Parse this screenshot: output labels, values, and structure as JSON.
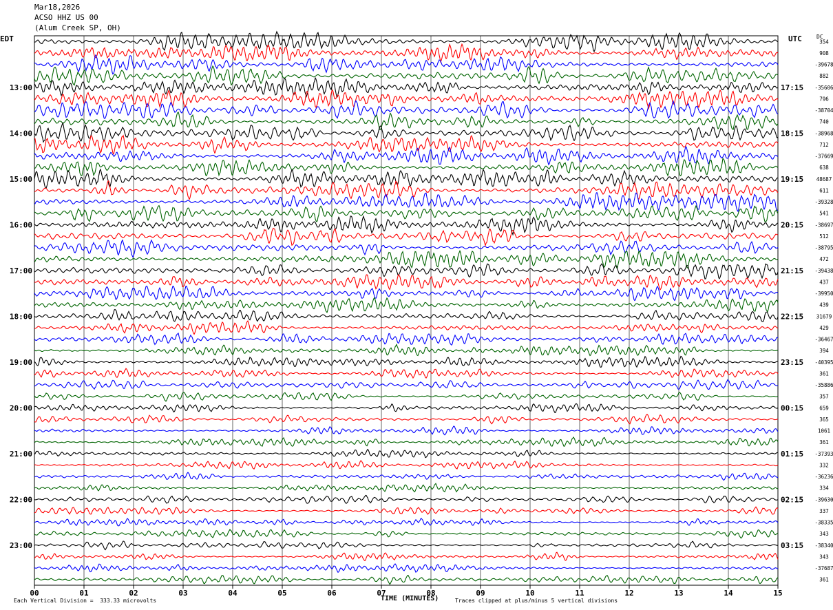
{
  "header": {
    "date": "Mar18,2026",
    "station": "ACSO HHZ US 00",
    "location": "(Alum Creek SP, OH)"
  },
  "timezones": {
    "left": "EDT",
    "right": "UTC",
    "dc_label": "DC"
  },
  "footer": {
    "scale_note": "Each Vertical Division =  333.33 microvolts",
    "x_title": "TIME (MINUTES)",
    "clip_note": "Traces clipped at plus/minus 5 vertical divisions"
  },
  "colors": {
    "cycle": [
      "#000000",
      "#ff0000",
      "#0000ff",
      "#006400"
    ],
    "grid": "#000000"
  },
  "chart_data": {
    "type": "line",
    "title": "",
    "xlabel": "TIME (MINUTES)",
    "ylabel": "",
    "xlim": [
      0,
      15
    ],
    "x_ticks": [
      "00",
      "01",
      "02",
      "03",
      "04",
      "05",
      "06",
      "07",
      "08",
      "09",
      "10",
      "11",
      "12",
      "13",
      "14",
      "15"
    ],
    "rows": 48,
    "minutes_per_row": 15,
    "color_cycle": [
      "black",
      "red",
      "blue",
      "green"
    ],
    "left_hour_labels": [
      {
        "row": 4,
        "label": "13:00"
      },
      {
        "row": 8,
        "label": "14:00"
      },
      {
        "row": 12,
        "label": "15:00"
      },
      {
        "row": 16,
        "label": "16:00"
      },
      {
        "row": 20,
        "label": "17:00"
      },
      {
        "row": 24,
        "label": "18:00"
      },
      {
        "row": 28,
        "label": "19:00"
      },
      {
        "row": 32,
        "label": "20:00"
      },
      {
        "row": 36,
        "label": "21:00"
      },
      {
        "row": 40,
        "label": "22:00"
      },
      {
        "row": 44,
        "label": "23:00"
      }
    ],
    "right_hour_labels": [
      {
        "row": 4,
        "label": "17:15"
      },
      {
        "row": 8,
        "label": "18:15"
      },
      {
        "row": 12,
        "label": "19:15"
      },
      {
        "row": 16,
        "label": "20:15"
      },
      {
        "row": 20,
        "label": "21:15"
      },
      {
        "row": 24,
        "label": "22:15"
      },
      {
        "row": 28,
        "label": "23:15"
      },
      {
        "row": 32,
        "label": "00:15"
      },
      {
        "row": 36,
        "label": "01:15"
      },
      {
        "row": 40,
        "label": "02:15"
      },
      {
        "row": 44,
        "label": "03:15"
      }
    ],
    "dc_offsets": [
      "354",
      "908",
      "-39678",
      "882",
      "-35606",
      "796",
      "-38704",
      "740",
      "-38968",
      "712",
      "-37669",
      "638",
      "48687",
      "611",
      "-39328",
      "541",
      "-38697",
      "512",
      "-38795",
      "472",
      "-39438",
      "437",
      "-39950",
      "439",
      "31679",
      "429",
      "-36467",
      "394",
      "-40395",
      "361",
      "-35886",
      "357",
      "659",
      "365",
      "1061",
      "361",
      "-37393",
      "332",
      "-36236",
      "334",
      "-39630",
      "337",
      "-38335",
      "343",
      "-38340",
      "343",
      "-37687",
      "361"
    ],
    "row_activity": [
      1.0,
      1.0,
      1.0,
      1.0,
      1.0,
      1.0,
      1.0,
      1.0,
      1.0,
      1.0,
      1.0,
      1.0,
      1.0,
      1.0,
      1.0,
      1.0,
      1.0,
      1.0,
      1.0,
      1.0,
      0.9,
      0.85,
      0.8,
      0.8,
      0.75,
      0.7,
      0.65,
      0.6,
      0.6,
      0.55,
      0.55,
      0.5,
      0.5,
      0.5,
      0.5,
      0.5,
      0.45,
      0.45,
      0.45,
      0.45,
      0.45,
      0.45,
      0.45,
      0.45,
      0.45,
      0.45,
      0.45,
      0.45
    ]
  }
}
